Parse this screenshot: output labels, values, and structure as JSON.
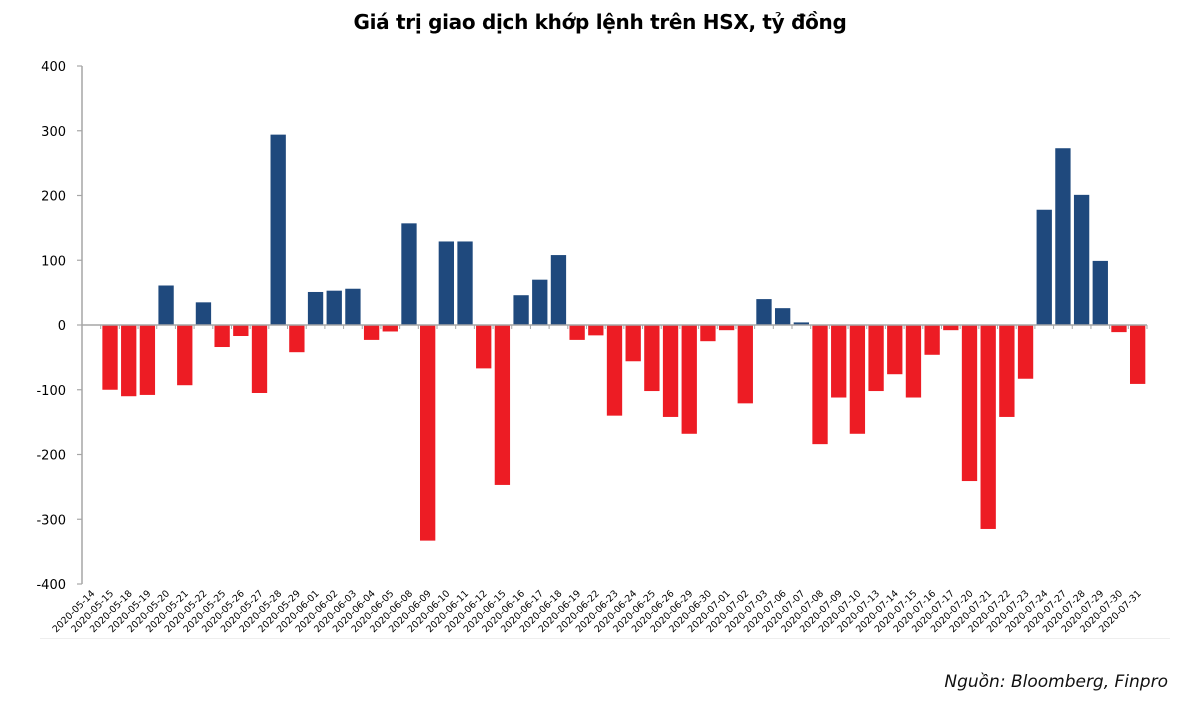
{
  "chart_data": {
    "type": "bar",
    "title": "Giá trị giao dịch khớp lệnh trên HSX, tỷ đồng",
    "xlabel": "",
    "ylabel": "",
    "ylim": [
      -400,
      400
    ],
    "yticks": [
      400,
      300,
      200,
      100,
      0,
      -100,
      -200,
      -300,
      -400
    ],
    "grid": false,
    "legend": null,
    "colors": {
      "positive": "#1F497D",
      "negative": "#ED1C24",
      "axis": "#A6A6A6"
    },
    "categories": [
      "2020-05-14",
      "2020-05-15",
      "2020-05-18",
      "2020-05-19",
      "2020-05-20",
      "2020-05-21",
      "2020-05-22",
      "2020-05-25",
      "2020-05-26",
      "2020-05-27",
      "2020-05-28",
      "2020-05-29",
      "2020-06-01",
      "2020-06-02",
      "2020-06-03",
      "2020-06-04",
      "2020-06-05",
      "2020-06-08",
      "2020-06-09",
      "2020-06-10",
      "2020-06-11",
      "2020-06-12",
      "2020-06-15",
      "2020-06-16",
      "2020-06-17",
      "2020-06-18",
      "2020-06-19",
      "2020-06-22",
      "2020-06-23",
      "2020-06-24",
      "2020-06-25",
      "2020-06-26",
      "2020-06-29",
      "2020-06-30",
      "2020-07-01",
      "2020-07-02",
      "2020-07-03",
      "2020-07-06",
      "2020-07-07",
      "2020-07-08",
      "2020-07-09",
      "2020-07-10",
      "2020-07-13",
      "2020-07-14",
      "2020-07-15",
      "2020-07-16",
      "2020-07-17",
      "2020-07-20",
      "2020-07-21",
      "2020-07-22",
      "2020-07-23",
      "2020-07-24",
      "2020-07-27",
      "2020-07-28",
      "2020-07-29",
      "2020-07-30",
      "2020-07-31"
    ],
    "values": [
      0,
      -100,
      -110,
      -108,
      61,
      -93,
      35,
      -34,
      -17,
      -105,
      294,
      -42,
      51,
      53,
      56,
      -23,
      -10,
      157,
      -333,
      129,
      129,
      -67,
      -247,
      46,
      70,
      108,
      -23,
      -16,
      -140,
      -56,
      -102,
      -142,
      -168,
      -25,
      -8,
      -121,
      40,
      26,
      4,
      -184,
      -112,
      -168,
      -102,
      -76,
      -112,
      -46,
      -8,
      -241,
      -315,
      -142,
      -83,
      178,
      273,
      201,
      99,
      -11,
      -91
    ],
    "source": "Nguồn: Bloomberg, Finpro"
  }
}
